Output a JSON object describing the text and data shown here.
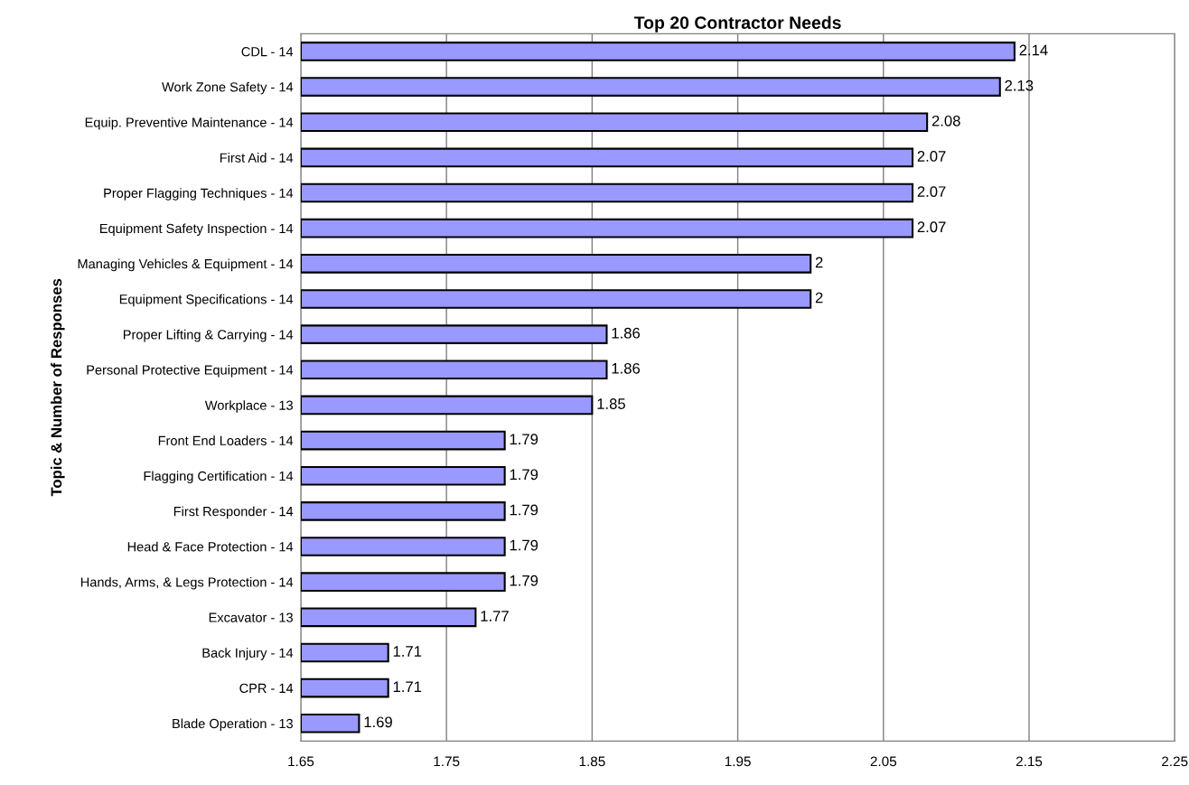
{
  "chart_data": {
    "type": "bar",
    "orientation": "horizontal",
    "title": "Top 20 Contractor Needs",
    "ylabel": "Topic & Number of Responses",
    "categories": [
      "CDL - 14",
      "Work Zone Safety - 14",
      "Equip. Preventive Maintenance - 14",
      "First Aid - 14",
      "Proper Flagging Techniques - 14",
      "Equipment Safety Inspection - 14",
      "Managing Vehicles & Equipment - 14",
      "Equipment Specifications - 14",
      "Proper Lifting & Carrying - 14",
      "Personal Protective Equipment - 14",
      "Workplace - 13",
      "Front End Loaders - 14",
      "Flagging Certification - 14",
      "First Responder - 14",
      "Head & Face Protection - 14",
      "Hands, Arms, & Legs Protection - 14",
      "Excavator - 13",
      "Back Injury - 14",
      "CPR - 14",
      "Blade Operation - 13"
    ],
    "values": [
      2.14,
      2.13,
      2.08,
      2.07,
      2.07,
      2.07,
      2,
      2,
      1.86,
      1.86,
      1.85,
      1.79,
      1.79,
      1.79,
      1.79,
      1.79,
      1.77,
      1.71,
      1.71,
      1.69
    ],
    "color": "#9999ff",
    "xlim": [
      1.65,
      2.25
    ],
    "xticks": [
      1.65,
      1.75,
      1.85,
      1.95,
      2.05,
      2.15,
      2.25
    ],
    "grid": "x",
    "data_labels": true
  }
}
